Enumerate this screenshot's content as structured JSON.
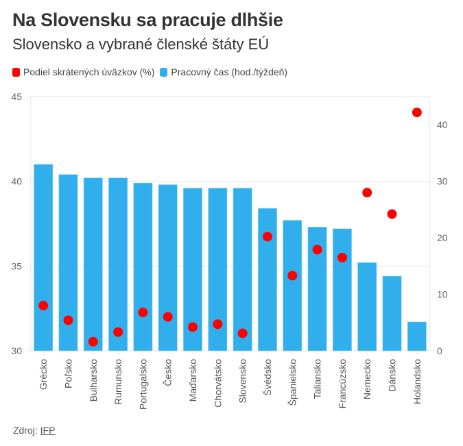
{
  "header": {
    "title": "Na Slovensku sa pracuje dlhšie",
    "subtitle": "Slovensko a vybrané členské štáty EÚ"
  },
  "source": {
    "label": "Zdroj:",
    "link_text": "IFP"
  },
  "colors": {
    "bars": "#31aeec",
    "dots": "#ff0000",
    "grid": "#eeeeee"
  },
  "chart_data": {
    "type": "bar",
    "title": "Na Slovensku sa pracuje dlhšie",
    "subtitle": "Slovensko a vybrané členské štáty EÚ",
    "categories": [
      "Grécko",
      "Poľsko",
      "Bulharsko",
      "Rumunsko",
      "Portugalsko",
      "Česko",
      "Maďarsko",
      "Chorvátsko",
      "Slovensko",
      "Švédsko",
      "Španielsko",
      "Taliansko",
      "Francúzsko",
      "Nemecko",
      "Dánsko",
      "Holandsko"
    ],
    "series": [
      {
        "name": "Podiel skrátených úväzkov (%)",
        "type": "scatter",
        "axis": "right",
        "color": "#ff0000",
        "values": [
          8.0,
          5.4,
          1.6,
          3.3,
          6.8,
          6.0,
          4.2,
          4.7,
          3.1,
          20.2,
          13.3,
          17.9,
          16.5,
          28.0,
          24.2,
          42.2
        ]
      },
      {
        "name": "Pracovný čas (hod./týždeň)",
        "type": "bar",
        "axis": "left",
        "color": "#31aeec",
        "values": [
          41.0,
          40.4,
          40.2,
          40.2,
          39.9,
          39.8,
          39.6,
          39.6,
          39.6,
          38.4,
          37.7,
          37.3,
          37.2,
          35.2,
          34.4,
          31.7
        ]
      }
    ],
    "y_left": {
      "lim": [
        30,
        45
      ],
      "ticks": [
        "30",
        "35",
        "40",
        "45"
      ]
    },
    "y_right": {
      "lim": [
        0,
        45
      ],
      "ticks": [
        "0",
        "10",
        "20",
        "30",
        "40"
      ]
    },
    "xlabel": "",
    "ylabel": "",
    "grid": true,
    "legend_position": "top-left"
  }
}
